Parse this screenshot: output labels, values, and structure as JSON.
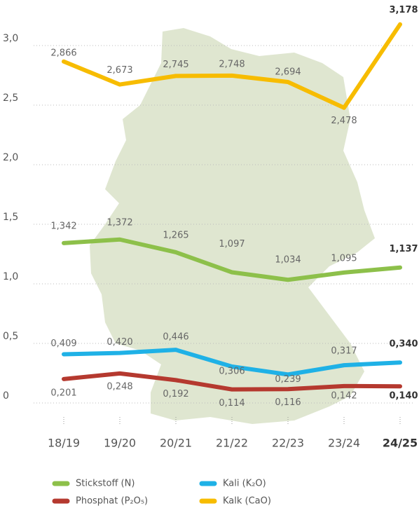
{
  "chart_data": {
    "type": "line",
    "categories": [
      "18/19",
      "19/20",
      "20/21",
      "21/22",
      "22/23",
      "23/24",
      "24/25"
    ],
    "ylim": [
      0,
      3.2
    ],
    "yticks": [
      0,
      {
        "value": 0.5,
        "label": "0,5"
      },
      {
        "value": 1,
        "label": "1,0"
      },
      {
        "value": 1.5,
        "label": "1,5"
      },
      {
        "value": 2,
        "label": "2,0"
      },
      {
        "value": 2.5,
        "label": "2,5"
      },
      {
        "value": 3,
        "label": "3,0"
      }
    ],
    "grid": true,
    "series": [
      {
        "name": "Stickstoff (N)",
        "color": "#8dc04a",
        "values": [
          1.342,
          1.372,
          1.265,
          1.097,
          1.034,
          1.095,
          1.137
        ],
        "value_labels": [
          "1,342",
          "1,372",
          "1,265",
          "1,097",
          "1,034",
          "1,095",
          "1,137"
        ]
      },
      {
        "name": "Kali (K₂O)",
        "color": "#1fb1e6",
        "values": [
          0.409,
          0.42,
          0.446,
          0.306,
          0.239,
          0.317,
          0.34
        ],
        "value_labels": [
          "0,409",
          "0,420",
          "0,446",
          "0,306",
          "0,239",
          "0,317",
          "0,340"
        ]
      },
      {
        "name": "Phosphat (P₂O₅)",
        "color": "#b5392f",
        "values": [
          0.201,
          0.248,
          0.192,
          0.114,
          0.116,
          0.142,
          0.14
        ],
        "value_labels": [
          "0,201",
          "0,248",
          "0,192",
          "0,114",
          "0,116",
          "0,142",
          "0,140"
        ]
      },
      {
        "name": "Kalk (CaO)",
        "color": "#f7bc00",
        "values": [
          2.866,
          2.673,
          2.745,
          2.748,
          2.694,
          2.478,
          3.178
        ],
        "value_labels": [
          "2,866",
          "2,673",
          "2,745",
          "2,748",
          "2,694",
          "2,478",
          "3,178"
        ]
      }
    ]
  }
}
